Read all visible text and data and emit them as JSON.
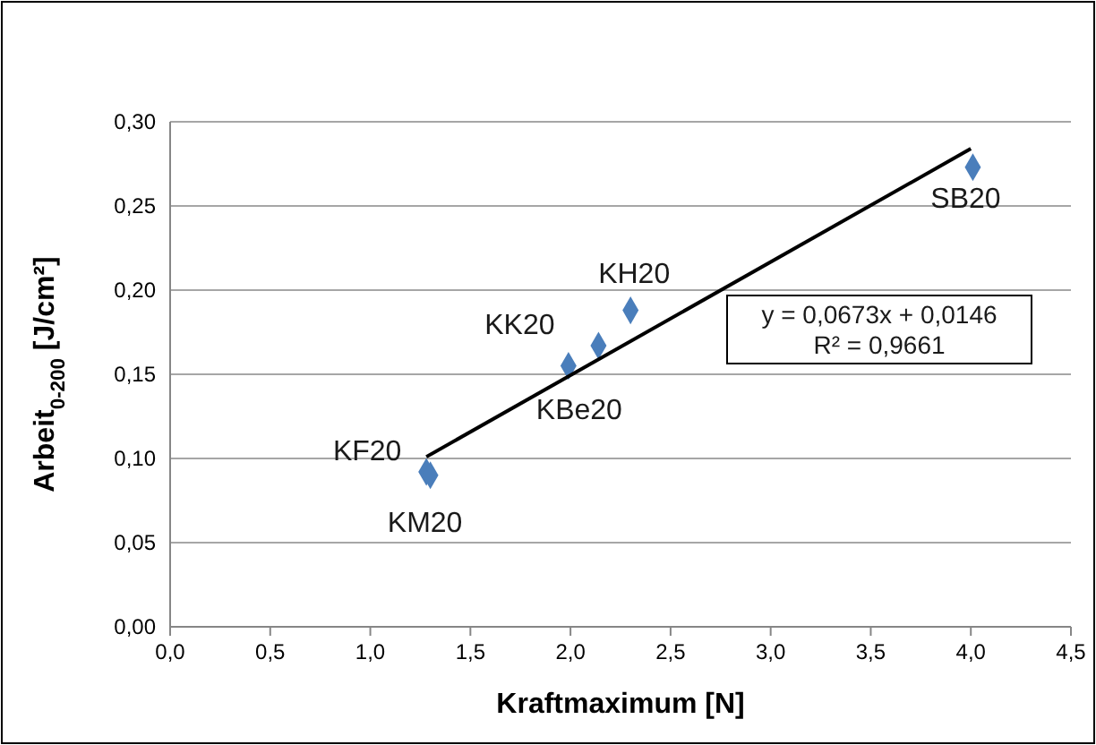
{
  "chart_data": {
    "type": "scatter",
    "xlabel": "Kraftmaximum [N]",
    "ylabel": "Arbeit$_{0-200}$  [J/cm²]",
    "xlim": [
      0,
      4.5
    ],
    "ylim": [
      0,
      0.3
    ],
    "xticks": [
      {
        "value": 0,
        "label": "0,0"
      },
      {
        "value": 0.5,
        "label": "0,5"
      },
      {
        "value": 1,
        "label": "1,0"
      },
      {
        "value": 1.5,
        "label": "1,5"
      },
      {
        "value": 2,
        "label": "2,0"
      },
      {
        "value": 2.5,
        "label": "2,5"
      },
      {
        "value": 3,
        "label": "3,0"
      },
      {
        "value": 3.5,
        "label": "3,5"
      },
      {
        "value": 4,
        "label": "4,0"
      },
      {
        "value": 4.5,
        "label": "4,5"
      }
    ],
    "yticks": [
      {
        "value": 0,
        "label": "0,00"
      },
      {
        "value": 0.05,
        "label": "0,05"
      },
      {
        "value": 0.1,
        "label": "0,10"
      },
      {
        "value": 0.15,
        "label": "0,15"
      },
      {
        "value": 0.2,
        "label": "0,20"
      },
      {
        "value": 0.25,
        "label": "0,25"
      },
      {
        "value": 0.3,
        "label": "0,30"
      }
    ],
    "grid": "y",
    "series": [
      {
        "marker": "diamond",
        "color": "#4a7ebb",
        "x": [
          1.28,
          1.3,
          1.99,
          2.14,
          2.3,
          4.01
        ],
        "values": [
          0.092,
          0.09,
          0.155,
          0.167,
          0.188,
          0.273
        ]
      },
      {
        "type": "line",
        "color": "#000000",
        "x": [
          1.28,
          4.0
        ],
        "values": [
          0.101,
          0.284
        ],
        "line_style": "solid"
      }
    ],
    "annotations": [
      {
        "text": "KF20",
        "x": 1.28,
        "y": 0.092
      },
      {
        "text": "KM20",
        "x": 1.3,
        "y": 0.09
      },
      {
        "text": "KBe20",
        "x": 1.99,
        "y": 0.155
      },
      {
        "text": "KK20",
        "x": 2.14,
        "y": 0.167
      },
      {
        "text": "KH20",
        "x": 2.3,
        "y": 0.188
      },
      {
        "text": "SB20",
        "x": 4.01,
        "y": 0.273
      },
      "y = 0,0673x + 0,0146\nR² = 0,9661"
    ]
  }
}
